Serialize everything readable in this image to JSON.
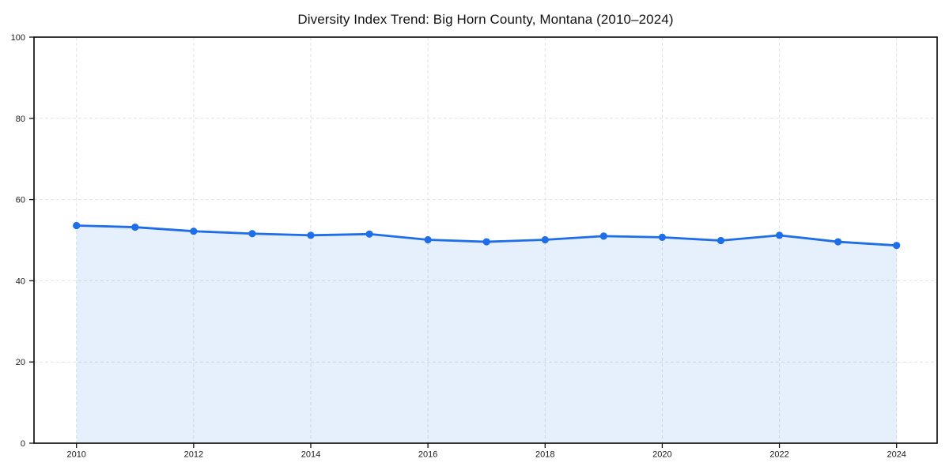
{
  "chart_data": {
    "type": "line",
    "title": "Diversity Index Trend: Big Horn County, Montana (2010–2024)",
    "x": [
      2010,
      2011,
      2012,
      2013,
      2014,
      2015,
      2016,
      2017,
      2018,
      2019,
      2020,
      2021,
      2022,
      2023,
      2024
    ],
    "series": [
      {
        "name": "Diversity Index",
        "values": [
          53.6,
          53.2,
          52.2,
          51.6,
          51.2,
          51.5,
          50.1,
          49.6,
          50.1,
          51.0,
          50.7,
          49.9,
          51.2,
          49.6,
          48.7
        ]
      }
    ],
    "xlabel": "",
    "ylabel": "",
    "ylim": [
      0,
      100
    ],
    "yticks": [
      0,
      20,
      40,
      60,
      80,
      100
    ],
    "xticks": [
      2010,
      2012,
      2014,
      2016,
      2018,
      2020,
      2022,
      2024
    ],
    "grid": true,
    "grid_style": "dashed",
    "legend_position": "none",
    "marker": "circle",
    "area_fill": true,
    "colors": {
      "line": "#1d6ee8",
      "marker": "#1d6ee8",
      "area": "rgba(29, 110, 232, 0.11)",
      "grid": "#e2e2e2",
      "spine": "#111111",
      "tick": "#111111",
      "tick_label": "#1a1a1a",
      "title": "#111111",
      "background": "#ffffff"
    }
  }
}
